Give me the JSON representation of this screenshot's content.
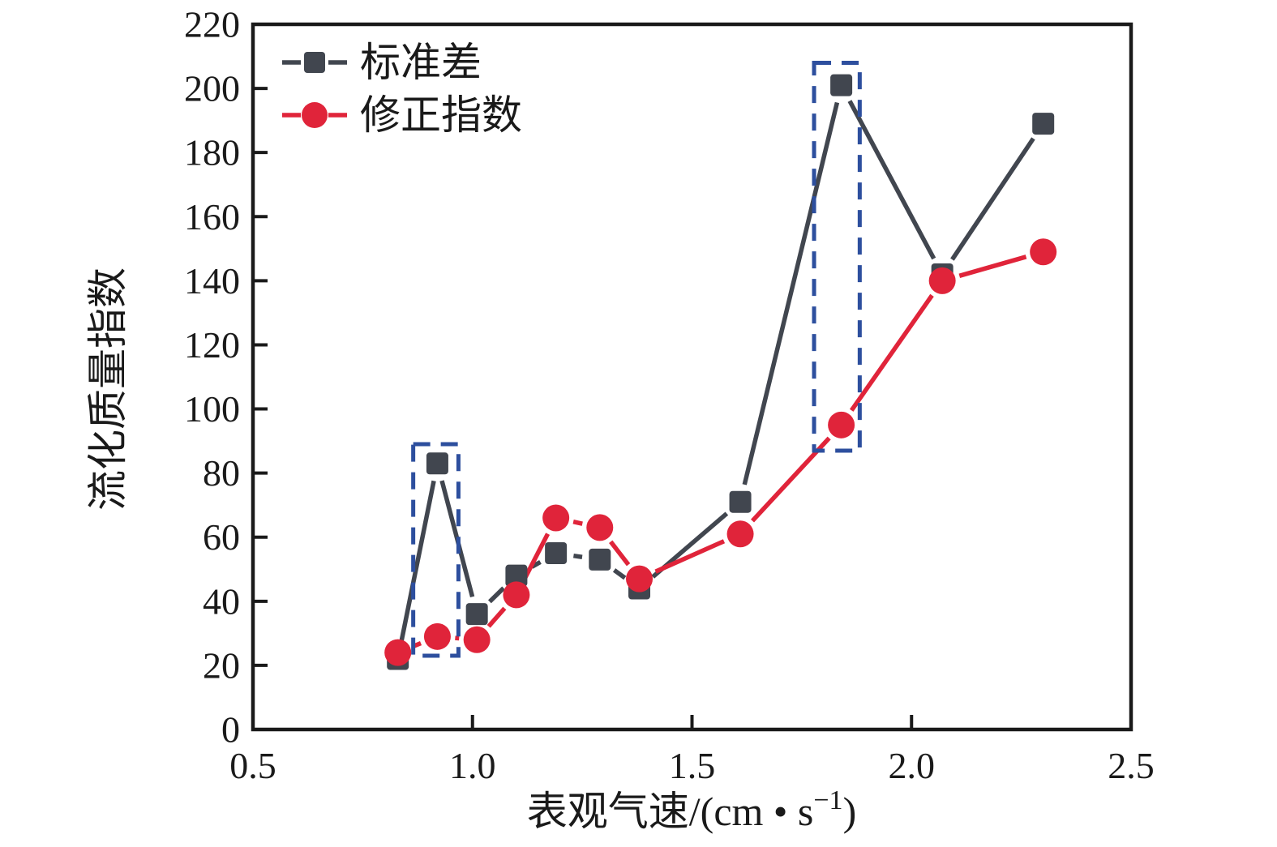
{
  "chart_data": {
    "type": "line",
    "title": "",
    "xlabel_pre": "表观气速/(cm • s",
    "xlabel_sup": "−1",
    "xlabel_post": ")",
    "ylabel": "流化质量指数",
    "xlim": [
      0.5,
      2.5
    ],
    "ylim": [
      0,
      220
    ],
    "x_tick_values": [
      0.5,
      1.0,
      1.5,
      2.0,
      2.5
    ],
    "x_tick_labels": [
      "0.5",
      "1.0",
      "1.5",
      "2.0",
      "2.5"
    ],
    "y_tick_min": 0,
    "y_tick_max": 220,
    "y_tick_step": 20,
    "grid": false,
    "legend_position": "top-left",
    "x": [
      0.83,
      0.92,
      1.01,
      1.1,
      1.19,
      1.29,
      1.38,
      1.61,
      1.84,
      2.07,
      2.3
    ],
    "series": [
      {
        "name": "标准差",
        "marker": "square",
        "color": "#41464f",
        "values": [
          22,
          83,
          36,
          48,
          55,
          53,
          44,
          71,
          201,
          142,
          189
        ]
      },
      {
        "name": "修正指数",
        "marker": "circle",
        "color": "#e0243a",
        "values": [
          24,
          29,
          28,
          42,
          66,
          63,
          47,
          61,
          95,
          140,
          149
        ]
      }
    ],
    "highlight_boxes": [
      {
        "x1": 0.865,
        "x2": 0.968,
        "y1": 23,
        "y2": 89
      },
      {
        "x1": 1.778,
        "x2": 1.882,
        "y1": 87,
        "y2": 208
      }
    ],
    "highlight_color": "#2d4f9e",
    "axis_color": "#1a1a1a"
  }
}
